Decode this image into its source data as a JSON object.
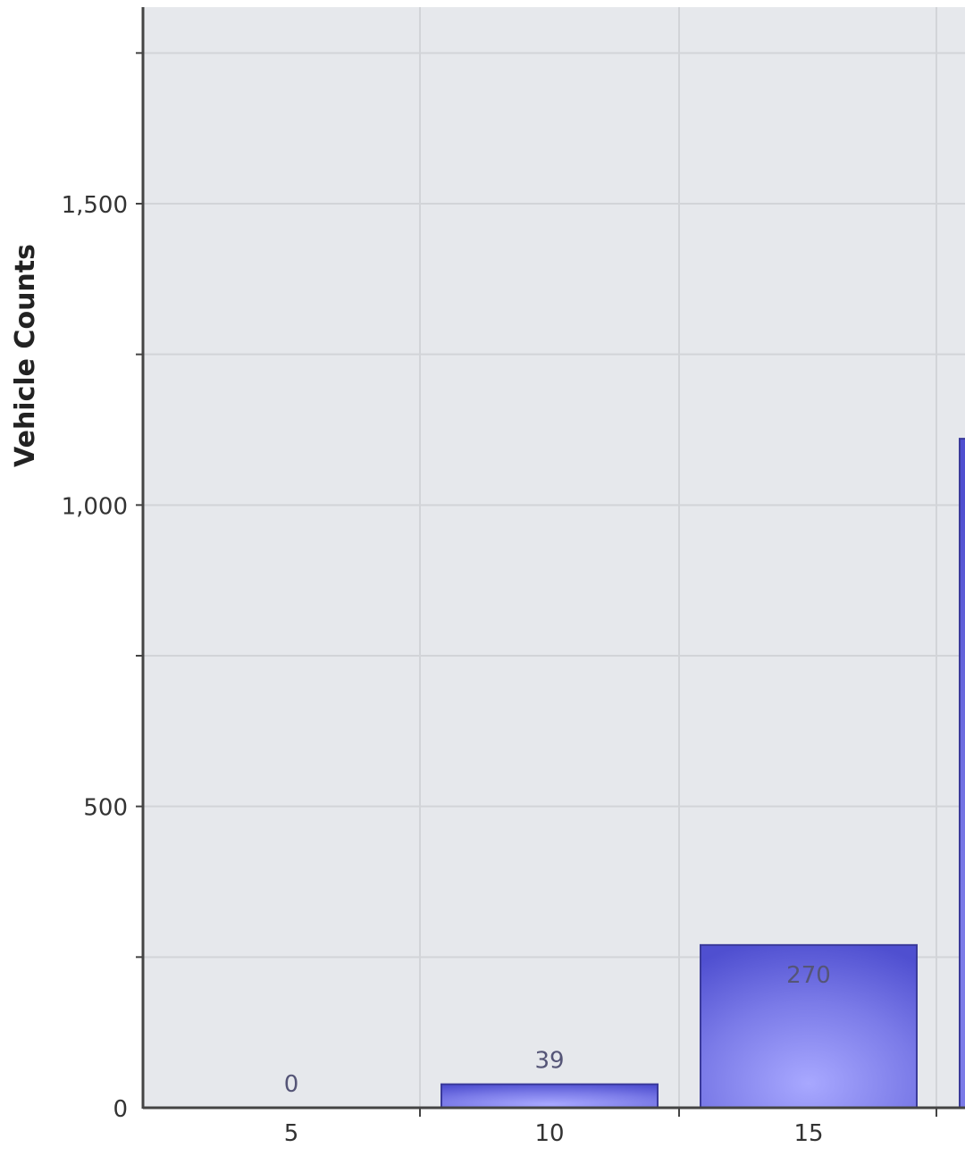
{
  "chart_data": {
    "type": "bar",
    "title": "",
    "xlabel": "",
    "ylabel": "Vehicle Counts",
    "categories": [
      "5",
      "10",
      "15",
      ""
    ],
    "values": [
      0,
      39,
      270,
      1110
    ],
    "data_labels": [
      "0",
      "39",
      "270",
      ""
    ],
    "ylim": [
      0,
      1800
    ],
    "yticks": [
      0,
      500,
      1000,
      1500
    ],
    "ytick_labels": [
      "0",
      "500",
      "1,000",
      "1,500"
    ],
    "grid": true,
    "colors": {
      "bar": "#7b7be8",
      "bar_dark": "#4f4fd0",
      "bar_border": "#3a3a9a",
      "plot_bg": "#e6e8ec",
      "grid": "#d2d4d8",
      "axis": "#444444"
    }
  }
}
